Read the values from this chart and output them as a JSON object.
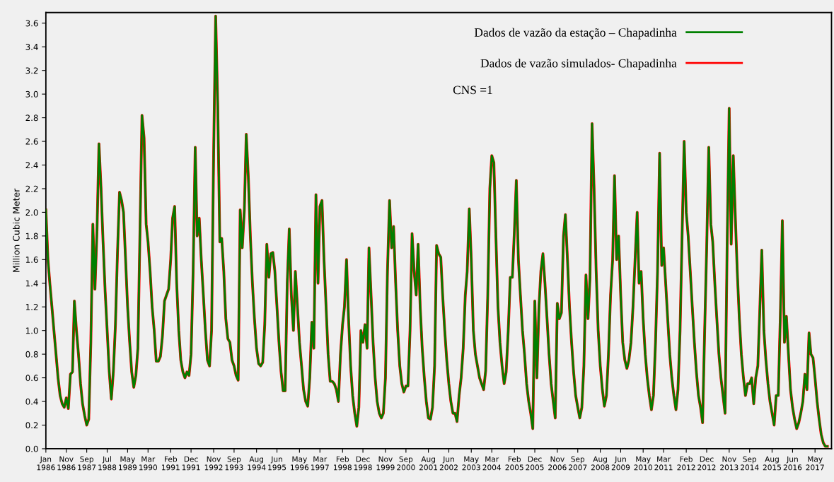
{
  "chart_data": {
    "type": "line",
    "ylabel": "Million Cubic Meter",
    "x": [
      "1986-01",
      "1986-02",
      "1986-03",
      "1986-04",
      "1986-05",
      "1986-06",
      "1986-07",
      "1986-08",
      "1986-09",
      "1986-10",
      "1986-11",
      "1986-12",
      "1987-01",
      "1987-02",
      "1987-03",
      "1987-04",
      "1987-05",
      "1987-06",
      "1987-07",
      "1987-08",
      "1987-09",
      "1987-10",
      "1987-11",
      "1987-12",
      "1988-01",
      "1988-02",
      "1988-03",
      "1988-04",
      "1988-05",
      "1988-06",
      "1988-07",
      "1988-08",
      "1988-09",
      "1988-10",
      "1988-11",
      "1988-12",
      "1989-01",
      "1989-02",
      "1989-03",
      "1989-04",
      "1989-05",
      "1989-06",
      "1989-07",
      "1989-08",
      "1989-09",
      "1989-10",
      "1989-11",
      "1989-12",
      "1990-01",
      "1990-02",
      "1990-03",
      "1990-04",
      "1990-05",
      "1990-06",
      "1990-07",
      "1990-08",
      "1990-09",
      "1990-10",
      "1990-11",
      "1990-12",
      "1991-01",
      "1991-02",
      "1991-03",
      "1991-04",
      "1991-05",
      "1991-06",
      "1991-07",
      "1991-08",
      "1991-09",
      "1991-10",
      "1991-11",
      "1991-12",
      "1992-01",
      "1992-02",
      "1992-03",
      "1992-04",
      "1992-05",
      "1992-06",
      "1992-07",
      "1992-08",
      "1992-09",
      "1992-10",
      "1992-11",
      "1992-12",
      "1993-01",
      "1993-02",
      "1993-03",
      "1993-04",
      "1993-05",
      "1993-06",
      "1993-07",
      "1993-08",
      "1993-09",
      "1993-10",
      "1993-11",
      "1993-12",
      "1994-01",
      "1994-02",
      "1994-03",
      "1994-04",
      "1994-05",
      "1994-06",
      "1994-07",
      "1994-08",
      "1994-09",
      "1994-10",
      "1994-11",
      "1994-12",
      "1995-01",
      "1995-02",
      "1995-03",
      "1995-04",
      "1995-05",
      "1995-06",
      "1995-07",
      "1995-08",
      "1995-09",
      "1995-10",
      "1995-11",
      "1995-12",
      "1996-01",
      "1996-02",
      "1996-03",
      "1996-04",
      "1996-05",
      "1996-06",
      "1996-07",
      "1996-08",
      "1996-09",
      "1996-10",
      "1996-11",
      "1996-12",
      "1997-01",
      "1997-02",
      "1997-03",
      "1997-04",
      "1997-05",
      "1997-06",
      "1997-07",
      "1997-08",
      "1997-09",
      "1997-10",
      "1997-11",
      "1997-12",
      "1998-01",
      "1998-02",
      "1998-03",
      "1998-04",
      "1998-05",
      "1998-06",
      "1998-07",
      "1998-08",
      "1998-09",
      "1998-10",
      "1998-11",
      "1998-12",
      "1999-01",
      "1999-02",
      "1999-03",
      "1999-04",
      "1999-05",
      "1999-06",
      "1999-07",
      "1999-08",
      "1999-09",
      "1999-10",
      "1999-11",
      "1999-12",
      "2000-01",
      "2000-02",
      "2000-03",
      "2000-04",
      "2000-05",
      "2000-06",
      "2000-07",
      "2000-08",
      "2000-09",
      "2000-10",
      "2000-11",
      "2000-12",
      "2001-01",
      "2001-02",
      "2001-03",
      "2001-04",
      "2001-05",
      "2001-06",
      "2001-07",
      "2001-08",
      "2001-09",
      "2001-10",
      "2001-11",
      "2001-12",
      "2002-01",
      "2002-02",
      "2002-03",
      "2002-04",
      "2002-05",
      "2002-06",
      "2002-07",
      "2002-08",
      "2002-09",
      "2002-10",
      "2002-11",
      "2002-12",
      "2003-01",
      "2003-02",
      "2003-03",
      "2003-04",
      "2003-05",
      "2003-06",
      "2003-07",
      "2003-08",
      "2003-09",
      "2003-10",
      "2003-11",
      "2003-12",
      "2004-01",
      "2004-02",
      "2004-03",
      "2004-04",
      "2004-05",
      "2004-06",
      "2004-07",
      "2004-08",
      "2004-09",
      "2004-10",
      "2004-11",
      "2004-12",
      "2005-01",
      "2005-02",
      "2005-03",
      "2005-04",
      "2005-05",
      "2005-06",
      "2005-07",
      "2005-08",
      "2005-09",
      "2005-10",
      "2005-11",
      "2005-12",
      "2006-01",
      "2006-02",
      "2006-03",
      "2006-04",
      "2006-05",
      "2006-06",
      "2006-07",
      "2006-08",
      "2006-09",
      "2006-10",
      "2006-11",
      "2006-12",
      "2007-01",
      "2007-02",
      "2007-03",
      "2007-04",
      "2007-05",
      "2007-06",
      "2007-07",
      "2007-08",
      "2007-09",
      "2007-10",
      "2007-11",
      "2007-12",
      "2008-01",
      "2008-02",
      "2008-03",
      "2008-04",
      "2008-05",
      "2008-06",
      "2008-07",
      "2008-08",
      "2008-09",
      "2008-10",
      "2008-11",
      "2008-12",
      "2009-01",
      "2009-02",
      "2009-03",
      "2009-04",
      "2009-05",
      "2009-06",
      "2009-07",
      "2009-08",
      "2009-09",
      "2009-10",
      "2009-11",
      "2009-12",
      "2010-01",
      "2010-02",
      "2010-03",
      "2010-04",
      "2010-05",
      "2010-06",
      "2010-07",
      "2010-08",
      "2010-09",
      "2010-10",
      "2010-11",
      "2010-12",
      "2011-01",
      "2011-02",
      "2011-03",
      "2011-04",
      "2011-05",
      "2011-06",
      "2011-07",
      "2011-08",
      "2011-09",
      "2011-10",
      "2011-11",
      "2011-12",
      "2012-01",
      "2012-02",
      "2012-03",
      "2012-04",
      "2012-05",
      "2012-06",
      "2012-07",
      "2012-08",
      "2012-09",
      "2012-10",
      "2012-11",
      "2012-12",
      "2013-01",
      "2013-02",
      "2013-03",
      "2013-04",
      "2013-05",
      "2013-06",
      "2013-07",
      "2013-08",
      "2013-09",
      "2013-10",
      "2013-11",
      "2013-12",
      "2014-01",
      "2014-02",
      "2014-03",
      "2014-04",
      "2014-05",
      "2014-06",
      "2014-07",
      "2014-08",
      "2014-09",
      "2014-10",
      "2014-11",
      "2014-12",
      "2015-01",
      "2015-02",
      "2015-03",
      "2015-04",
      "2015-05",
      "2015-06",
      "2015-07",
      "2015-08",
      "2015-09",
      "2015-10",
      "2015-11",
      "2015-12",
      "2016-01",
      "2016-02",
      "2016-03",
      "2016-04",
      "2016-05",
      "2016-06",
      "2016-07",
      "2016-08",
      "2016-09",
      "2016-10",
      "2016-11",
      "2016-12",
      "2017-01",
      "2017-02",
      "2017-03",
      "2017-04",
      "2017-05",
      "2017-06",
      "2017-07",
      "2017-08",
      "2017-09",
      "2017-10",
      "2017-11"
    ],
    "series": [
      {
        "name": "Dados de vazão simulados- Chapadinha",
        "color": "#ff0000",
        "values": [
          2.02,
          1.6,
          1.4,
          1.2,
          1.0,
          0.8,
          0.6,
          0.45,
          0.38,
          0.35,
          0.43,
          0.34,
          0.63,
          0.65,
          1.25,
          1.0,
          0.8,
          0.55,
          0.38,
          0.28,
          0.2,
          0.25,
          0.9,
          1.9,
          1.35,
          1.85,
          2.58,
          2.2,
          1.75,
          1.33,
          1.0,
          0.65,
          0.42,
          0.65,
          1.05,
          1.65,
          2.17,
          2.1,
          2.0,
          1.6,
          1.2,
          0.9,
          0.65,
          0.52,
          0.62,
          0.85,
          1.83,
          2.82,
          2.63,
          1.9,
          1.75,
          1.5,
          1.2,
          1.0,
          0.74,
          0.74,
          0.78,
          0.95,
          1.25,
          1.3,
          1.35,
          1.6,
          1.95,
          2.05,
          1.4,
          1.0,
          0.75,
          0.65,
          0.6,
          0.65,
          0.62,
          0.8,
          1.5,
          2.55,
          1.8,
          1.95,
          1.6,
          1.3,
          1.0,
          0.75,
          0.7,
          1.0,
          2.5,
          3.66,
          2.9,
          1.75,
          1.78,
          1.5,
          1.1,
          0.93,
          0.9,
          0.75,
          0.7,
          0.62,
          0.58,
          2.02,
          1.7,
          2.02,
          2.66,
          2.3,
          1.8,
          1.4,
          1.1,
          0.85,
          0.72,
          0.7,
          0.73,
          1.05,
          1.73,
          1.45,
          1.65,
          1.66,
          1.5,
          1.2,
          0.9,
          0.65,
          0.49,
          0.49,
          1.4,
          1.86,
          1.3,
          1.0,
          1.5,
          1.2,
          0.9,
          0.7,
          0.5,
          0.4,
          0.36,
          0.6,
          1.07,
          0.85,
          2.15,
          1.4,
          2.05,
          2.1,
          1.6,
          1.2,
          0.8,
          0.57,
          0.57,
          0.55,
          0.5,
          0.4,
          0.8,
          1.05,
          1.2,
          1.6,
          1.1,
          0.7,
          0.45,
          0.3,
          0.19,
          0.35,
          1.0,
          0.9,
          1.05,
          0.85,
          1.7,
          1.3,
          0.9,
          0.6,
          0.4,
          0.3,
          0.26,
          0.3,
          0.6,
          1.5,
          2.1,
          1.7,
          1.88,
          1.4,
          1.0,
          0.7,
          0.55,
          0.48,
          0.53,
          0.53,
          1.0,
          1.82,
          1.5,
          1.3,
          1.73,
          1.2,
          0.85,
          0.6,
          0.4,
          0.26,
          0.25,
          0.35,
          0.7,
          1.72,
          1.65,
          1.62,
          1.3,
          1.0,
          0.75,
          0.55,
          0.4,
          0.3,
          0.3,
          0.23,
          0.45,
          0.6,
          0.85,
          1.3,
          1.5,
          2.03,
          1.6,
          1.0,
          0.8,
          0.7,
          0.6,
          0.55,
          0.5,
          0.66,
          1.3,
          2.2,
          2.48,
          2.42,
          1.8,
          1.2,
          0.9,
          0.7,
          0.55,
          0.65,
          1.0,
          1.45,
          1.45,
          1.85,
          2.27,
          1.6,
          1.3,
          1.0,
          0.8,
          0.55,
          0.4,
          0.3,
          0.17,
          1.25,
          0.6,
          1.2,
          1.5,
          1.65,
          1.4,
          1.1,
          0.8,
          0.55,
          0.4,
          0.26,
          1.23,
          1.1,
          1.15,
          1.8,
          1.98,
          1.6,
          1.2,
          0.9,
          0.65,
          0.45,
          0.35,
          0.26,
          0.35,
          0.7,
          1.47,
          1.1,
          1.45,
          2.75,
          2.2,
          1.5,
          1.0,
          0.7,
          0.5,
          0.36,
          0.45,
          0.8,
          1.3,
          1.6,
          2.31,
          1.6,
          1.8,
          1.3,
          0.9,
          0.75,
          0.68,
          0.75,
          0.9,
          1.2,
          1.6,
          2.0,
          1.4,
          1.5,
          1.1,
          0.8,
          0.6,
          0.45,
          0.33,
          0.45,
          0.9,
          1.5,
          2.5,
          1.55,
          1.7,
          1.4,
          1.1,
          0.8,
          0.6,
          0.45,
          0.33,
          0.5,
          1.0,
          1.8,
          2.6,
          2.0,
          1.8,
          1.5,
          1.2,
          0.9,
          0.65,
          0.45,
          0.35,
          0.22,
          1.0,
          1.7,
          2.55,
          1.9,
          1.75,
          1.4,
          1.1,
          0.8,
          0.6,
          0.45,
          0.3,
          1.7,
          2.88,
          1.73,
          2.48,
          1.95,
          1.5,
          1.1,
          0.8,
          0.6,
          0.45,
          0.55,
          0.55,
          0.6,
          0.38,
          0.6,
          0.7,
          1.2,
          1.68,
          1.0,
          0.75,
          0.55,
          0.4,
          0.3,
          0.2,
          0.45,
          0.45,
          1.1,
          1.93,
          0.9,
          1.12,
          0.8,
          0.5,
          0.35,
          0.25,
          0.17,
          0.22,
          0.3,
          0.4,
          0.63,
          0.5,
          0.98,
          0.8,
          0.77,
          0.6,
          0.4,
          0.25,
          0.12,
          0.05,
          0.02,
          0.02
        ]
      },
      {
        "name": "Dados de vazão da estação – Chapadinha",
        "color": "#008000",
        "values": [
          2.02,
          1.6,
          1.4,
          1.2,
          1.0,
          0.8,
          0.6,
          0.45,
          0.38,
          0.35,
          0.43,
          0.34,
          0.63,
          0.65,
          1.25,
          1.0,
          0.8,
          0.55,
          0.38,
          0.28,
          0.2,
          0.25,
          0.9,
          1.9,
          1.35,
          1.85,
          2.58,
          2.2,
          1.75,
          1.33,
          1.0,
          0.65,
          0.42,
          0.65,
          1.05,
          1.65,
          2.17,
          2.1,
          2.0,
          1.6,
          1.2,
          0.9,
          0.65,
          0.52,
          0.62,
          0.85,
          1.83,
          2.82,
          2.63,
          1.9,
          1.75,
          1.5,
          1.2,
          1.0,
          0.74,
          0.74,
          0.78,
          0.95,
          1.25,
          1.3,
          1.35,
          1.6,
          1.95,
          2.05,
          1.4,
          1.0,
          0.75,
          0.65,
          0.6,
          0.65,
          0.62,
          0.8,
          1.5,
          2.55,
          1.8,
          1.95,
          1.6,
          1.3,
          1.0,
          0.75,
          0.7,
          1.0,
          2.5,
          3.66,
          2.9,
          1.75,
          1.78,
          1.5,
          1.1,
          0.93,
          0.9,
          0.75,
          0.7,
          0.62,
          0.58,
          2.02,
          1.7,
          2.02,
          2.66,
          2.3,
          1.8,
          1.4,
          1.1,
          0.85,
          0.72,
          0.7,
          0.73,
          1.05,
          1.73,
          1.45,
          1.65,
          1.66,
          1.5,
          1.2,
          0.9,
          0.65,
          0.49,
          0.49,
          1.4,
          1.86,
          1.3,
          1.0,
          1.5,
          1.2,
          0.9,
          0.7,
          0.5,
          0.4,
          0.36,
          0.6,
          1.07,
          0.85,
          2.15,
          1.4,
          2.05,
          2.1,
          1.6,
          1.2,
          0.8,
          0.57,
          0.57,
          0.55,
          0.5,
          0.4,
          0.8,
          1.05,
          1.2,
          1.6,
          1.1,
          0.7,
          0.45,
          0.3,
          0.19,
          0.35,
          1.0,
          0.9,
          1.05,
          0.85,
          1.7,
          1.3,
          0.9,
          0.6,
          0.4,
          0.3,
          0.26,
          0.3,
          0.6,
          1.5,
          2.1,
          1.7,
          1.88,
          1.4,
          1.0,
          0.7,
          0.55,
          0.48,
          0.53,
          0.53,
          1.0,
          1.82,
          1.5,
          1.3,
          1.73,
          1.2,
          0.85,
          0.6,
          0.4,
          0.26,
          0.25,
          0.35,
          0.7,
          1.72,
          1.65,
          1.62,
          1.3,
          1.0,
          0.75,
          0.55,
          0.4,
          0.3,
          0.3,
          0.23,
          0.45,
          0.6,
          0.85,
          1.3,
          1.5,
          2.03,
          1.6,
          1.0,
          0.8,
          0.7,
          0.6,
          0.55,
          0.5,
          0.66,
          1.3,
          2.2,
          2.48,
          2.42,
          1.8,
          1.2,
          0.9,
          0.7,
          0.55,
          0.65,
          1.0,
          1.45,
          1.45,
          1.85,
          2.27,
          1.6,
          1.3,
          1.0,
          0.8,
          0.55,
          0.4,
          0.3,
          0.17,
          1.25,
          0.6,
          1.2,
          1.5,
          1.65,
          1.4,
          1.1,
          0.8,
          0.55,
          0.4,
          0.26,
          1.23,
          1.1,
          1.15,
          1.8,
          1.98,
          1.6,
          1.2,
          0.9,
          0.65,
          0.45,
          0.35,
          0.26,
          0.35,
          0.7,
          1.47,
          1.1,
          1.45,
          2.75,
          2.2,
          1.5,
          1.0,
          0.7,
          0.5,
          0.36,
          0.45,
          0.8,
          1.3,
          1.6,
          2.31,
          1.6,
          1.8,
          1.3,
          0.9,
          0.75,
          0.68,
          0.75,
          0.9,
          1.2,
          1.6,
          2.0,
          1.4,
          1.5,
          1.1,
          0.8,
          0.6,
          0.45,
          0.33,
          0.45,
          0.9,
          1.5,
          2.5,
          1.55,
          1.7,
          1.4,
          1.1,
          0.8,
          0.6,
          0.45,
          0.33,
          0.5,
          1.0,
          1.8,
          2.6,
          2.0,
          1.8,
          1.5,
          1.2,
          0.9,
          0.65,
          0.45,
          0.35,
          0.22,
          1.0,
          1.7,
          2.55,
          1.9,
          1.75,
          1.4,
          1.1,
          0.8,
          0.6,
          0.45,
          0.3,
          1.7,
          2.88,
          1.73,
          2.48,
          1.95,
          1.5,
          1.1,
          0.8,
          0.6,
          0.45,
          0.55,
          0.55,
          0.6,
          0.38,
          0.6,
          0.7,
          1.2,
          1.68,
          1.0,
          0.75,
          0.55,
          0.4,
          0.3,
          0.2,
          0.45,
          0.45,
          1.1,
          1.93,
          0.9,
          1.12,
          0.8,
          0.5,
          0.35,
          0.25,
          0.17,
          0.22,
          0.3,
          0.4,
          0.63,
          0.5,
          0.98,
          0.8,
          0.77,
          0.6,
          0.4,
          0.25,
          0.12,
          0.05,
          0.02,
          0.02
        ]
      }
    ],
    "xlim": [
      "1986-01",
      "2018-01"
    ],
    "xticks": [
      {
        "value": "1986-01",
        "label": "Jan\n1986"
      },
      {
        "value": "1986-11",
        "label": "Nov\n1986"
      },
      {
        "value": "1987-09",
        "label": "Sep\n1987"
      },
      {
        "value": "1988-07",
        "label": "Jul\n1988"
      },
      {
        "value": "1989-05",
        "label": "May\n1989"
      },
      {
        "value": "1990-03",
        "label": "Mar\n1990"
      },
      {
        "value": "1991-02",
        "label": "Feb\n1991"
      },
      {
        "value": "1991-12",
        "label": "Dec\n1991"
      },
      {
        "value": "1992-11",
        "label": "Nov\n1992"
      },
      {
        "value": "1993-09",
        "label": "Sep\n1993"
      },
      {
        "value": "1994-08",
        "label": "Aug\n1994"
      },
      {
        "value": "1995-06",
        "label": "Jun\n1995"
      },
      {
        "value": "1996-05",
        "label": "May\n1996"
      },
      {
        "value": "1997-03",
        "label": "Mar\n1997"
      },
      {
        "value": "1998-02",
        "label": "Feb\n1998"
      },
      {
        "value": "1998-12",
        "label": "Dec\n1998"
      },
      {
        "value": "1999-11",
        "label": "Nov\n1999"
      },
      {
        "value": "2000-09",
        "label": "Sep\n2000"
      },
      {
        "value": "2001-08",
        "label": "Aug\n2001"
      },
      {
        "value": "2002-06",
        "label": "Jun\n2002"
      },
      {
        "value": "2003-05",
        "label": "May\n2003"
      },
      {
        "value": "2004-03",
        "label": "Mar\n2004"
      },
      {
        "value": "2005-02",
        "label": "Feb\n2005"
      },
      {
        "value": "2005-12",
        "label": "Dec\n2005"
      },
      {
        "value": "2006-11",
        "label": "Nov\n2006"
      },
      {
        "value": "2007-09",
        "label": "Sep\n2007"
      },
      {
        "value": "2008-08",
        "label": "Aug\n2008"
      },
      {
        "value": "2009-06",
        "label": "Jun\n2009"
      },
      {
        "value": "2010-05",
        "label": "May\n2010"
      },
      {
        "value": "2011-03",
        "label": "Mar\n2011"
      },
      {
        "value": "2012-02",
        "label": "Feb\n2012"
      },
      {
        "value": "2012-12",
        "label": "Dec\n2012"
      },
      {
        "value": "2013-11",
        "label": "Nov\n2013"
      },
      {
        "value": "2014-09",
        "label": "Sep\n2014"
      },
      {
        "value": "2015-08",
        "label": "Aug\n2015"
      },
      {
        "value": "2016-06",
        "label": "Jun\n2016"
      },
      {
        "value": "2017-05",
        "label": "May\n2017"
      }
    ],
    "ylim": [
      0,
      3.69
    ],
    "yticks": [
      {
        "value": 0,
        "label": "0.0"
      },
      0.2,
      0.4,
      0.6,
      0.8,
      {
        "value": 1,
        "label": "1.0"
      },
      1.2,
      1.4,
      1.6,
      1.8,
      {
        "value": 2,
        "label": "2.0"
      },
      2.2,
      2.4,
      2.6,
      2.8,
      {
        "value": 3,
        "label": "3.0"
      },
      3.2,
      3.4,
      3.6
    ],
    "grid": false,
    "legend": "top right",
    "marker": "none",
    "line_style": "solid",
    "annotations": [
      "CNS =1"
    ]
  }
}
